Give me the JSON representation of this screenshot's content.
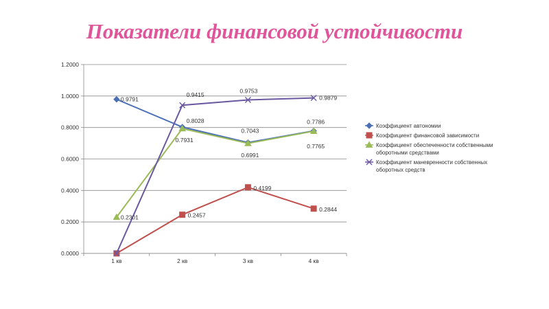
{
  "title": "Показатели финансовой устойчивости",
  "chart_data": {
    "type": "line",
    "categories": [
      "1 кв",
      "2 кв",
      "3 кв",
      "4 кв"
    ],
    "ylim": [
      0,
      1.2
    ],
    "yticks": [
      "0.0000",
      "0.2000",
      "0.4000",
      "0.6000",
      "0.8000",
      "1.0000",
      "1.2000"
    ],
    "grid": true,
    "legend_position": "right",
    "series": [
      {
        "name": "Коэффициент автономии",
        "values": [
          0.9791,
          0.8028,
          0.7043,
          0.7786
        ],
        "labels": [
          "0.9791",
          "0.8028",
          "0.7043",
          "0.7786"
        ],
        "color": "#4a6fb5",
        "marker": "diamond"
      },
      {
        "name": "Коэффициент финансовой зависимости",
        "values": [
          0.0,
          0.2457,
          0.4199,
          0.2844
        ],
        "labels": [
          "",
          "0.2457",
          "0.4199",
          "0.2844"
        ],
        "color": "#c0504d",
        "marker": "square"
      },
      {
        "name": "Коэффициент обеспеченности собственными оборотными средствами",
        "values": [
          0.2301,
          0.7931,
          0.6991,
          0.7765
        ],
        "labels": [
          "0.2301",
          "0.7931",
          "0.6991",
          "0.7765"
        ],
        "color": "#9bbb59",
        "marker": "triangle"
      },
      {
        "name": "Коэффициент маневренности собственных оборотных средств",
        "values": [
          0.0,
          0.9415,
          0.9753,
          0.9879
        ],
        "labels": [
          "",
          "0.9415",
          "0.9753",
          "0.9879"
        ],
        "color": "#6a58a0",
        "marker": "x"
      }
    ]
  }
}
